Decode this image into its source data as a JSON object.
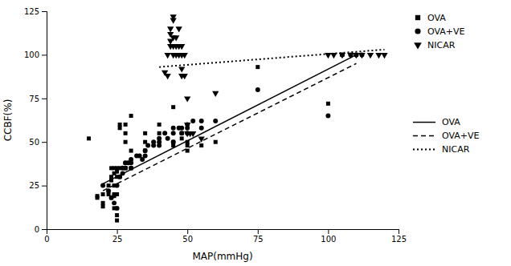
{
  "chart_data": {
    "type": "scatter",
    "xlabel": "MAP(mmHg)",
    "ylabel": "CCBF(%)",
    "xlim": [
      0,
      125
    ],
    "ylim": [
      0,
      125
    ],
    "xticks": [
      0,
      25,
      50,
      75,
      100,
      125
    ],
    "yticks": [
      0,
      25,
      50,
      75,
      100,
      125
    ],
    "legend": "right",
    "series": [
      {
        "name": "OVA",
        "type": "scatter",
        "marker": "square",
        "color": "#000000",
        "x": [
          15,
          18,
          18,
          20,
          20,
          20,
          22,
          22,
          23,
          23,
          23,
          23,
          24,
          24,
          24,
          24,
          24,
          24,
          25,
          25,
          25,
          25,
          25,
          25,
          26,
          26,
          26,
          26,
          28,
          28,
          28,
          28,
          28,
          30,
          30,
          30,
          35,
          35,
          35,
          40,
          40,
          45,
          45,
          45,
          48,
          48,
          50,
          50,
          50,
          55,
          60,
          75,
          100,
          105,
          110
        ],
        "values": [
          52,
          19,
          18,
          20,
          15,
          13,
          25,
          20,
          35,
          30,
          28,
          18,
          35,
          32,
          25,
          20,
          19,
          12,
          35,
          33,
          30,
          20,
          8,
          5,
          60,
          58,
          35,
          30,
          60,
          55,
          50,
          38,
          35,
          65,
          45,
          35,
          55,
          50,
          45,
          60,
          55,
          70,
          50,
          48,
          55,
          52,
          50,
          45,
          48,
          48,
          50,
          93,
          72,
          100,
          100
        ]
      },
      {
        "name": "OVA+VE",
        "type": "scatter",
        "marker": "circle",
        "color": "#000000",
        "x": [
          20,
          22,
          23,
          24,
          25,
          25,
          26,
          27,
          27,
          28,
          28,
          29,
          30,
          30,
          30,
          32,
          33,
          34,
          35,
          35,
          36,
          38,
          38,
          40,
          40,
          40,
          42,
          43,
          45,
          45,
          45,
          47,
          48,
          48,
          50,
          50,
          50,
          52,
          55,
          55,
          60,
          75,
          100,
          105,
          108,
          110,
          112
        ],
        "values": [
          25,
          22,
          18,
          15,
          12,
          25,
          30,
          35,
          32,
          38,
          35,
          38,
          40,
          38,
          35,
          42,
          42,
          40,
          45,
          42,
          48,
          50,
          48,
          52,
          50,
          48,
          55,
          52,
          58,
          55,
          50,
          58,
          58,
          55,
          60,
          58,
          55,
          62,
          62,
          58,
          62,
          80,
          65,
          100,
          100,
          100,
          100
        ]
      },
      {
        "name": "NICAR",
        "type": "scatter",
        "marker": "triangle-down",
        "color": "#000000",
        "x": [
          42,
          43,
          43,
          44,
          44,
          44,
          44,
          45,
          45,
          45,
          45,
          45,
          46,
          46,
          46,
          47,
          47,
          47,
          48,
          48,
          48,
          48,
          49,
          49,
          50,
          50,
          50,
          51,
          52,
          55,
          60,
          100,
          102,
          105,
          108,
          110,
          112,
          115,
          118,
          120
        ],
        "values": [
          90,
          88,
          100,
          105,
          108,
          112,
          115,
          100,
          105,
          110,
          120,
          122,
          100,
          105,
          110,
          105,
          100,
          115,
          88,
          92,
          100,
          105,
          88,
          100,
          55,
          60,
          75,
          55,
          55,
          52,
          78,
          100,
          100,
          100,
          100,
          100,
          100,
          100,
          100,
          100
        ]
      },
      {
        "name": "OVA",
        "type": "line",
        "line_style": "solid",
        "color": "#000000",
        "x": [
          20,
          110
        ],
        "values": [
          26,
          100
        ]
      },
      {
        "name": "OVA+VE",
        "type": "line",
        "line_style": "dashed",
        "color": "#000000",
        "x": [
          20,
          110
        ],
        "values": [
          22,
          95
        ]
      },
      {
        "name": "NICAR",
        "type": "line",
        "line_style": "dotted",
        "color": "#000000",
        "x": [
          40,
          120
        ],
        "values": [
          93,
          103
        ]
      }
    ]
  }
}
